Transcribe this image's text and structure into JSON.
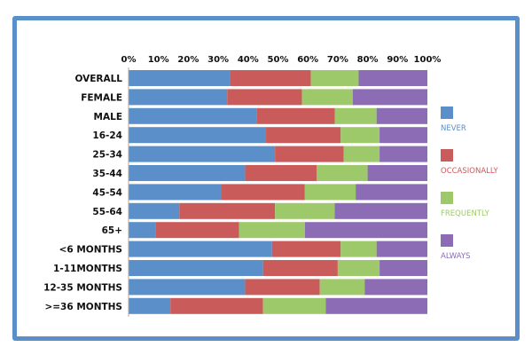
{
  "chart_data": {
    "type": "bar",
    "orientation": "horizontal",
    "stacked": "percent",
    "categories": [
      "OVERALL",
      "FEMALE",
      "MALE",
      "16-24",
      "25-34",
      "35-44",
      "45-54",
      "55-64",
      "65+",
      "<6 MONTHS",
      "1-11MONTHS",
      "12-35 MONTHS",
      ">=36 MONTHS"
    ],
    "series": [
      {
        "name": "NEVER",
        "color": "#5b8fc9",
        "values": [
          34,
          33,
          43,
          46,
          49,
          39,
          31,
          17,
          9,
          48,
          45,
          39,
          14
        ]
      },
      {
        "name": "OCCASIONALLY",
        "color": "#c95b5b",
        "values": [
          27,
          25,
          26,
          25,
          23,
          24,
          28,
          32,
          28,
          23,
          25,
          25,
          31
        ]
      },
      {
        "name": "FREQUENTLY",
        "color": "#9ec96a",
        "values": [
          16,
          17,
          14,
          13,
          12,
          17,
          17,
          20,
          22,
          12,
          14,
          15,
          21
        ]
      },
      {
        "name": "ALWAYS",
        "color": "#8b6cb5",
        "values": [
          23,
          25,
          17,
          16,
          16,
          20,
          24,
          31,
          41,
          17,
          16,
          21,
          34
        ]
      }
    ],
    "xticks": [
      "0%",
      "10%",
      "20%",
      "30%",
      "40%",
      "50%",
      "60%",
      "70%",
      "80%",
      "90%",
      "100%"
    ],
    "xlim": [
      0,
      100
    ],
    "grid": false,
    "legend_position": "right"
  }
}
